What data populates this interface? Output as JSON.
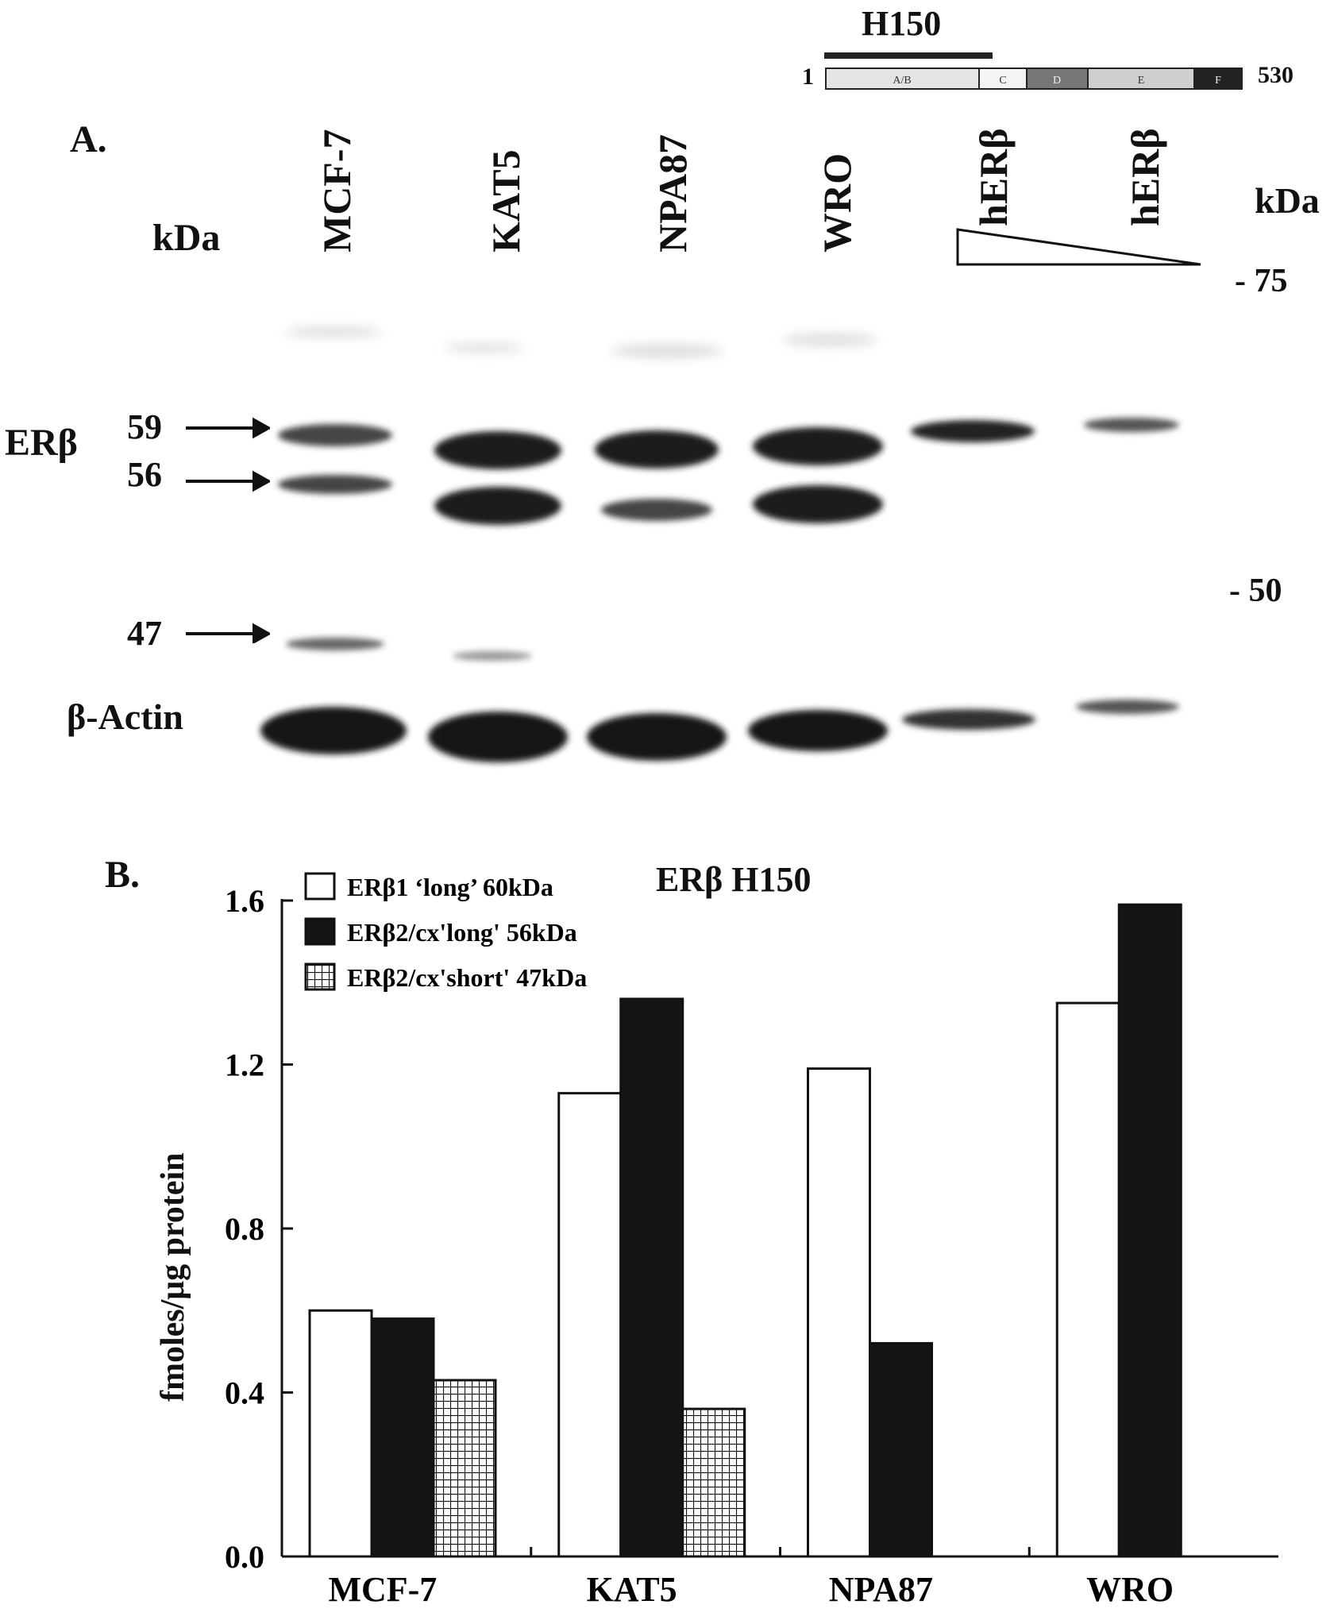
{
  "panel_a": {
    "label": "A.",
    "kda_left": "kDa",
    "kda_right": "kDa",
    "lanes": [
      "MCF-7",
      "KAT5",
      "NPA87",
      "WRO",
      "hERβ",
      "hERβ"
    ],
    "markers_right": [
      "- 75",
      "- 50"
    ],
    "band_labels": [
      "59",
      "56",
      "47"
    ],
    "protein_label": "ERβ",
    "actin_label": "β-Actin",
    "construct": {
      "antibody": "H150",
      "start": "1",
      "end": "530",
      "domains": [
        "A/B",
        "C",
        "D",
        "E",
        "F"
      ]
    }
  },
  "panel_b": {
    "label": "B.",
    "chart_data": {
      "type": "bar",
      "title": "ERβ H150",
      "categories": [
        "MCF-7",
        "KAT5",
        "NPA87",
        "WRO"
      ],
      "series": [
        {
          "name": "ERβ1 ‘long’ 60kDa",
          "values": [
            0.6,
            1.13,
            1.19,
            1.35
          ],
          "fill": "white"
        },
        {
          "name": "ERβ2/cx'long' 56kDa",
          "values": [
            0.58,
            1.36,
            0.52,
            1.59
          ],
          "fill": "black"
        },
        {
          "name": "ERβ2/cx'short' 47kDa",
          "values": [
            0.43,
            null,
            null,
            null
          ],
          "fill": "grid"
        }
      ],
      "kat5_short": 0.36,
      "ylabel": "fmoles/μg protein",
      "ylim": [
        0,
        1.6
      ],
      "yticks": [
        "0.0",
        "0.4",
        "0.8",
        "1.2",
        "1.6"
      ],
      "legend": "top-left"
    }
  }
}
